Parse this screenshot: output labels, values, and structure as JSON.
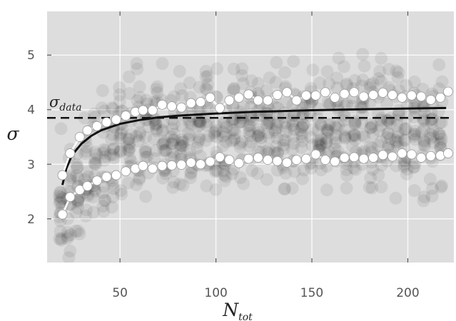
{
  "chart_data": {
    "type": "scatter",
    "title": "",
    "xlabel": {
      "main": "N",
      "sub": "tot"
    },
    "ylabel": "σ",
    "xlim": [
      12,
      224
    ],
    "ylim": [
      1.2,
      5.8
    ],
    "x_ticks": [
      50,
      100,
      150,
      200
    ],
    "y_ticks": [
      2,
      3,
      4,
      5
    ],
    "x_tick_labels": [
      "50",
      "100",
      "150",
      "200"
    ],
    "y_tick_labels": [
      "2",
      "3",
      "4",
      "5"
    ],
    "grid": true,
    "background": "#dddddd",
    "reference_line": {
      "y": 3.85,
      "style": "dashed",
      "label_main": "σ",
      "label_sub": "data"
    },
    "fit_curve": {
      "style": "solid",
      "asymptote": 4.03,
      "points": [
        [
          20,
          2.62
        ],
        [
          22,
          2.92
        ],
        [
          25,
          3.17
        ],
        [
          30,
          3.38
        ],
        [
          35,
          3.52
        ],
        [
          40,
          3.62
        ],
        [
          50,
          3.74
        ],
        [
          60,
          3.81
        ],
        [
          70,
          3.86
        ],
        [
          80,
          3.89
        ],
        [
          100,
          3.93
        ],
        [
          120,
          3.96
        ],
        [
          150,
          3.99
        ],
        [
          180,
          4.01
        ],
        [
          220,
          4.03
        ]
      ]
    },
    "series": [
      {
        "role": "upper band",
        "points": [
          [
            20,
            2.8
          ],
          [
            24,
            3.2
          ],
          [
            29,
            3.5
          ],
          [
            33,
            3.62
          ],
          [
            38,
            3.7
          ],
          [
            43,
            3.77
          ],
          [
            48,
            3.82
          ],
          [
            53,
            3.89
          ],
          [
            58,
            3.96
          ],
          [
            62,
            3.99
          ],
          [
            67,
            3.99
          ],
          [
            72,
            4.09
          ],
          [
            77,
            4.06
          ],
          [
            82,
            4.04
          ],
          [
            87,
            4.12
          ],
          [
            92,
            4.14
          ],
          [
            97,
            4.22
          ],
          [
            102,
            4.03
          ],
          [
            107,
            4.17
          ],
          [
            112,
            4.22
          ],
          [
            117,
            4.28
          ],
          [
            122,
            4.17
          ],
          [
            127,
            4.17
          ],
          [
            132,
            4.27
          ],
          [
            137,
            4.32
          ],
          [
            142,
            4.17
          ],
          [
            147,
            4.26
          ],
          [
            152,
            4.26
          ],
          [
            157,
            4.32
          ],
          [
            162,
            4.22
          ],
          [
            167,
            4.29
          ],
          [
            172,
            4.32
          ],
          [
            177,
            4.24
          ],
          [
            182,
            4.27
          ],
          [
            187,
            4.31
          ],
          [
            192,
            4.27
          ],
          [
            197,
            4.22
          ],
          [
            202,
            4.26
          ],
          [
            207,
            4.24
          ],
          [
            212,
            4.18
          ],
          [
            217,
            4.22
          ],
          [
            221,
            4.33
          ]
        ]
      },
      {
        "role": "lower band",
        "points": [
          [
            20,
            2.08
          ],
          [
            24,
            2.4
          ],
          [
            29,
            2.53
          ],
          [
            33,
            2.6
          ],
          [
            38,
            2.7
          ],
          [
            43,
            2.77
          ],
          [
            48,
            2.8
          ],
          [
            53,
            2.87
          ],
          [
            58,
            2.92
          ],
          [
            62,
            2.97
          ],
          [
            67,
            2.92
          ],
          [
            72,
            2.97
          ],
          [
            77,
            2.98
          ],
          [
            82,
            2.99
          ],
          [
            87,
            3.03
          ],
          [
            92,
            3.0
          ],
          [
            97,
            3.05
          ],
          [
            102,
            3.13
          ],
          [
            107,
            3.08
          ],
          [
            112,
            3.02
          ],
          [
            117,
            3.1
          ],
          [
            122,
            3.12
          ],
          [
            127,
            3.08
          ],
          [
            132,
            3.06
          ],
          [
            137,
            3.03
          ],
          [
            142,
            3.08
          ],
          [
            147,
            3.1
          ],
          [
            152,
            3.18
          ],
          [
            157,
            3.08
          ],
          [
            162,
            3.05
          ],
          [
            167,
            3.12
          ],
          [
            172,
            3.13
          ],
          [
            177,
            3.1
          ],
          [
            182,
            3.12
          ],
          [
            187,
            3.17
          ],
          [
            192,
            3.14
          ],
          [
            197,
            3.2
          ],
          [
            202,
            3.18
          ],
          [
            207,
            3.12
          ],
          [
            212,
            3.15
          ],
          [
            217,
            3.16
          ],
          [
            221,
            3.2
          ]
        ]
      }
    ]
  }
}
